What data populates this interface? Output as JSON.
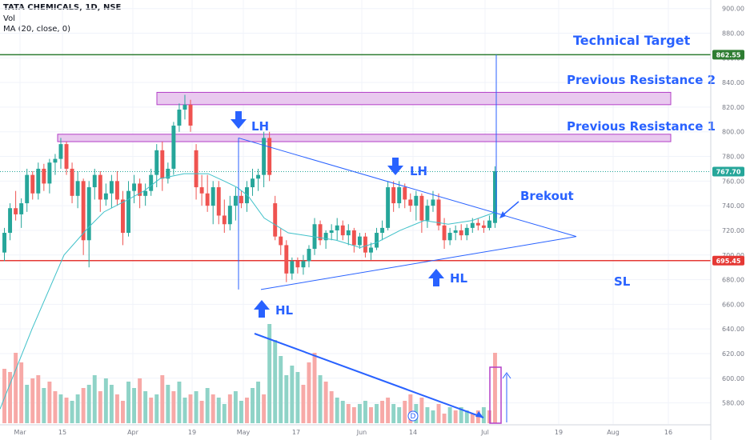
{
  "header": {
    "symbol_line": "TATA CHEMICALS, 1D, NSE",
    "vol_label": "Vol",
    "ma_label": "MA (20, close, 0)"
  },
  "colors": {
    "up": "#26a69a",
    "down": "#ef5350",
    "vol_up": "#8fd3c7",
    "vol_down": "#f7a9a7",
    "ma": "#3fc1c9",
    "accent": "#2962ff",
    "target": "#2e7d32",
    "sl": "#e53935",
    "zone_fill": "#e9c9ef",
    "zone_border": "#b33fc7"
  },
  "chart_data": {
    "type": "candlestick",
    "ylim": [
      570,
      905
    ],
    "yticks": [
      "580.00",
      "600.00",
      "620.00",
      "640.00",
      "660.00",
      "680.00",
      "700.00",
      "720.00",
      "740.00",
      "760.00",
      "780.00",
      "800.00",
      "820.00",
      "840.00",
      "860.00",
      "880.00",
      "900.00"
    ],
    "xticks": [
      "Mar",
      "15",
      "Apr",
      "19",
      "May",
      "17",
      "Jun",
      "14",
      "Jul",
      "19",
      "Aug",
      "16"
    ],
    "price_labels": {
      "target": "862.55",
      "last": "767.70",
      "sl": "695.45"
    },
    "levels": {
      "target": 862.55,
      "last": 767.7,
      "sl": 695.45
    },
    "zones": [
      {
        "name": "Previous Resistance 2",
        "low": 822,
        "high": 832
      },
      {
        "name": "Previous Resistance 1",
        "low": 792,
        "high": 798
      }
    ],
    "candles": [
      [
        702,
        722,
        695,
        718
      ],
      [
        718,
        742,
        712,
        738
      ],
      [
        738,
        752,
        728,
        733
      ],
      [
        733,
        746,
        722,
        742
      ],
      [
        742,
        770,
        735,
        765
      ],
      [
        765,
        768,
        745,
        750
      ],
      [
        750,
        775,
        745,
        770
      ],
      [
        770,
        774,
        752,
        758
      ],
      [
        758,
        778,
        750,
        775
      ],
      [
        775,
        782,
        765,
        778
      ],
      [
        778,
        795,
        770,
        790
      ],
      [
        790,
        792,
        765,
        770
      ],
      [
        770,
        775,
        742,
        748
      ],
      [
        748,
        768,
        738,
        760
      ],
      [
        760,
        762,
        700,
        712
      ],
      [
        712,
        760,
        690,
        755
      ],
      [
        755,
        770,
        745,
        765
      ],
      [
        765,
        768,
        735,
        745
      ],
      [
        745,
        758,
        740,
        750
      ],
      [
        750,
        765,
        738,
        760
      ],
      [
        760,
        768,
        740,
        745
      ],
      [
        745,
        752,
        708,
        718
      ],
      [
        718,
        760,
        715,
        752
      ],
      [
        752,
        765,
        742,
        758
      ],
      [
        758,
        762,
        738,
        748
      ],
      [
        748,
        758,
        740,
        752
      ],
      [
        752,
        770,
        748,
        765
      ],
      [
        765,
        790,
        755,
        785
      ],
      [
        785,
        792,
        752,
        762
      ],
      [
        762,
        775,
        758,
        770
      ],
      [
        770,
        808,
        765,
        805
      ],
      [
        805,
        823,
        800,
        818
      ],
      [
        818,
        830,
        810,
        822
      ],
      [
        822,
        826,
        800,
        805
      ],
      [
        785,
        790,
        745,
        755
      ],
      [
        755,
        765,
        740,
        750
      ],
      [
        750,
        765,
        735,
        740
      ],
      [
        740,
        760,
        725,
        755
      ],
      [
        755,
        760,
        725,
        732
      ],
      [
        732,
        745,
        718,
        725
      ],
      [
        725,
        748,
        720,
        740
      ],
      [
        740,
        755,
        728,
        748
      ],
      [
        748,
        752,
        738,
        742
      ],
      [
        742,
        760,
        735,
        755
      ],
      [
        755,
        770,
        748,
        762
      ],
      [
        762,
        770,
        752,
        765
      ],
      [
        765,
        800,
        755,
        795
      ],
      [
        795,
        800,
        760,
        765
      ],
      [
        742,
        748,
        712,
        715
      ],
      [
        715,
        722,
        700,
        708
      ],
      [
        708,
        712,
        678,
        685
      ],
      [
        685,
        698,
        680,
        695
      ],
      [
        695,
        698,
        685,
        690
      ],
      [
        690,
        700,
        684,
        695
      ],
      [
        695,
        708,
        690,
        705
      ],
      [
        705,
        730,
        700,
        725
      ],
      [
        725,
        728,
        708,
        712
      ],
      [
        712,
        720,
        705,
        718
      ],
      [
        718,
        725,
        712,
        720
      ],
      [
        720,
        730,
        712,
        724
      ],
      [
        724,
        728,
        712,
        716
      ],
      [
        716,
        725,
        708,
        720
      ],
      [
        720,
        722,
        702,
        708
      ],
      [
        708,
        718,
        705,
        715
      ],
      [
        715,
        718,
        698,
        702
      ],
      [
        702,
        710,
        696,
        706
      ],
      [
        706,
        722,
        704,
        718
      ],
      [
        718,
        728,
        712,
        722
      ],
      [
        722,
        760,
        720,
        755
      ],
      [
        755,
        760,
        735,
        742
      ],
      [
        742,
        760,
        738,
        755
      ],
      [
        755,
        758,
        738,
        745
      ],
      [
        745,
        750,
        735,
        740
      ],
      [
        740,
        752,
        728,
        748
      ],
      [
        748,
        750,
        718,
        728
      ],
      [
        728,
        745,
        722,
        740
      ],
      [
        740,
        752,
        735,
        745
      ],
      [
        745,
        750,
        720,
        724
      ],
      [
        724,
        730,
        705,
        712
      ],
      [
        712,
        722,
        708,
        718
      ],
      [
        718,
        724,
        712,
        720
      ],
      [
        720,
        725,
        712,
        716
      ],
      [
        716,
        725,
        712,
        722
      ],
      [
        722,
        730,
        718,
        726
      ],
      [
        726,
        730,
        720,
        724
      ],
      [
        724,
        728,
        718,
        722
      ],
      [
        722,
        732,
        720,
        728
      ],
      [
        726,
        772,
        722,
        768
      ]
    ],
    "ma20": [
      [
        0,
        575
      ],
      [
        40,
        640
      ],
      [
        80,
        700
      ],
      [
        110,
        722
      ],
      [
        130,
        735
      ],
      [
        160,
        745
      ],
      [
        180,
        752
      ],
      [
        200,
        762
      ],
      [
        230,
        766
      ],
      [
        260,
        766
      ],
      [
        280,
        760
      ],
      [
        296,
        755
      ],
      [
        310,
        748
      ],
      [
        330,
        730
      ],
      [
        360,
        718
      ],
      [
        390,
        715
      ],
      [
        420,
        712
      ],
      [
        450,
        706
      ],
      [
        470,
        710
      ],
      [
        500,
        720
      ],
      [
        530,
        728
      ],
      [
        560,
        725
      ],
      [
        590,
        728
      ],
      [
        620,
        735
      ]
    ],
    "volumes": [
      [
        34,
        0
      ],
      [
        32,
        0
      ],
      [
        44,
        0
      ],
      [
        38,
        0
      ],
      [
        24,
        1
      ],
      [
        28,
        0
      ],
      [
        30,
        0
      ],
      [
        22,
        1
      ],
      [
        26,
        0
      ],
      [
        20,
        0
      ],
      [
        18,
        1
      ],
      [
        16,
        0
      ],
      [
        14,
        1
      ],
      [
        18,
        1
      ],
      [
        22,
        0
      ],
      [
        24,
        1
      ],
      [
        30,
        1
      ],
      [
        20,
        0
      ],
      [
        28,
        1
      ],
      [
        24,
        1
      ],
      [
        18,
        0
      ],
      [
        14,
        0
      ],
      [
        26,
        1
      ],
      [
        22,
        1
      ],
      [
        28,
        0
      ],
      [
        20,
        1
      ],
      [
        16,
        0
      ],
      [
        18,
        1
      ],
      [
        30,
        0
      ],
      [
        24,
        1
      ],
      [
        20,
        0
      ],
      [
        26,
        1
      ],
      [
        16,
        1
      ],
      [
        18,
        0
      ],
      [
        20,
        1
      ],
      [
        14,
        0
      ],
      [
        22,
        1
      ],
      [
        18,
        0
      ],
      [
        16,
        1
      ],
      [
        12,
        1
      ],
      [
        18,
        0
      ],
      [
        20,
        1
      ],
      [
        14,
        1
      ],
      [
        16,
        0
      ],
      [
        22,
        1
      ],
      [
        26,
        1
      ],
      [
        18,
        0
      ],
      [
        62,
        1
      ],
      [
        52,
        1
      ],
      [
        42,
        1
      ],
      [
        30,
        1
      ],
      [
        36,
        1
      ],
      [
        32,
        1
      ],
      [
        24,
        0
      ],
      [
        38,
        0
      ],
      [
        44,
        0
      ],
      [
        30,
        1
      ],
      [
        26,
        0
      ],
      [
        20,
        0
      ],
      [
        16,
        1
      ],
      [
        14,
        1
      ],
      [
        12,
        0
      ],
      [
        10,
        0
      ],
      [
        12,
        1
      ],
      [
        14,
        1
      ],
      [
        10,
        0
      ],
      [
        12,
        1
      ],
      [
        14,
        0
      ],
      [
        16,
        0
      ],
      [
        12,
        1
      ],
      [
        10,
        1
      ],
      [
        14,
        0
      ],
      [
        18,
        0
      ],
      [
        12,
        1
      ],
      [
        16,
        0
      ],
      [
        10,
        1
      ],
      [
        8,
        1
      ],
      [
        12,
        0
      ],
      [
        6,
        0
      ],
      [
        10,
        1
      ],
      [
        8,
        0
      ],
      [
        10,
        1
      ],
      [
        8,
        1
      ],
      [
        6,
        0
      ],
      [
        8,
        0
      ],
      [
        10,
        1
      ],
      [
        8,
        0
      ],
      [
        44,
        0
      ]
    ]
  },
  "annotations": {
    "technical_target": "Technical Target",
    "prev_res_2": "Previous Resistance 2",
    "prev_res_1": "Previous Resistance 1",
    "lh1": "LH",
    "lh2": "LH",
    "hl1": "HL",
    "hl2": "HL",
    "breakout": "Brekout",
    "sl": "SL",
    "volume_marker": "D"
  }
}
